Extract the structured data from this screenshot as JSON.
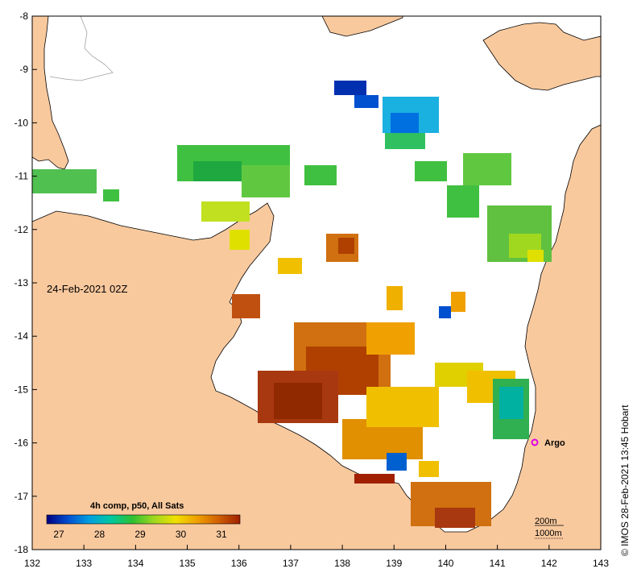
{
  "map": {
    "date_label": "24-Feb-2021 02Z",
    "credit": "© IMOS 28-Feb-2021 13:45 Hobart",
    "composite_label": "4h comp, p50, All Sats",
    "x_ticks": [
      "132",
      "133",
      "134",
      "135",
      "136",
      "137",
      "138",
      "139",
      "140",
      "141",
      "142",
      "143"
    ],
    "y_ticks": [
      "-8",
      "-9",
      "-10",
      "-11",
      "-12",
      "-13",
      "-14",
      "-15",
      "-16",
      "-17",
      "-18"
    ],
    "colorbar_ticks": [
      "27",
      "28",
      "29",
      "30",
      "31"
    ],
    "colorbar_stops": [
      "#000080",
      "#0050d0",
      "#00a0e0",
      "#00c8a0",
      "#30c030",
      "#a0d820",
      "#f0e000",
      "#f0a000",
      "#d06000",
      "#a02000"
    ],
    "argo_label": "Argo",
    "contour_labels": [
      "200m",
      "1000m"
    ],
    "colors": {
      "land": "#f9c99e",
      "sea": "#ffffff",
      "argo_marker": "#e000e0"
    }
  }
}
